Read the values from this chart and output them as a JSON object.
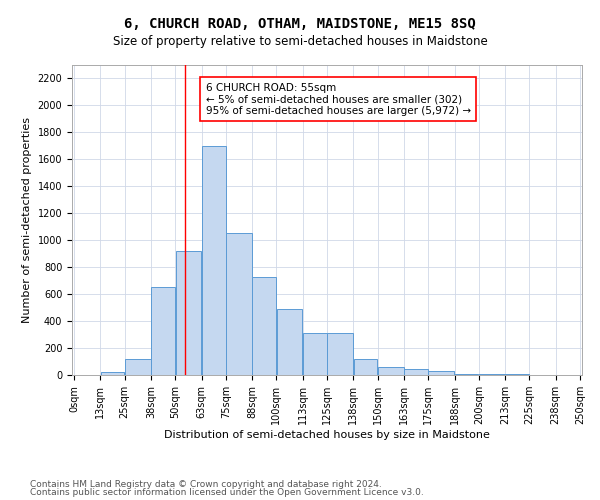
{
  "title1": "6, CHURCH ROAD, OTHAM, MAIDSTONE, ME15 8SQ",
  "title2": "Size of property relative to semi-detached houses in Maidstone",
  "xlabel": "Distribution of semi-detached houses by size in Maidstone",
  "ylabel": "Number of semi-detached properties",
  "annotation_title": "6 CHURCH ROAD: 55sqm",
  "annotation_line1": "← 5% of semi-detached houses are smaller (302)",
  "annotation_line2": "95% of semi-detached houses are larger (5,972) →",
  "footer1": "Contains HM Land Registry data © Crown copyright and database right 2024.",
  "footer2": "Contains public sector information licensed under the Open Government Licence v3.0.",
  "bin_edges": [
    0,
    13,
    25,
    38,
    50,
    63,
    75,
    88,
    100,
    113,
    125,
    138,
    150,
    163,
    175,
    188,
    200,
    213,
    225,
    238,
    250
  ],
  "bar_heights": [
    0,
    25,
    120,
    650,
    920,
    1700,
    1050,
    730,
    490,
    310,
    310,
    120,
    60,
    45,
    30,
    10,
    5,
    5,
    2,
    1
  ],
  "bar_color": "#c5d8f0",
  "bar_edge_color": "#5b9bd5",
  "property_line_x": 55,
  "ylim": [
    0,
    2300
  ],
  "yticks": [
    0,
    200,
    400,
    600,
    800,
    1000,
    1200,
    1400,
    1600,
    1800,
    2000,
    2200
  ],
  "grid_color": "#d0d8e8",
  "title1_fontsize": 10,
  "title2_fontsize": 8.5,
  "xlabel_fontsize": 8,
  "ylabel_fontsize": 8,
  "tick_fontsize": 7,
  "annotation_fontsize": 7.5,
  "footer_fontsize": 6.5
}
